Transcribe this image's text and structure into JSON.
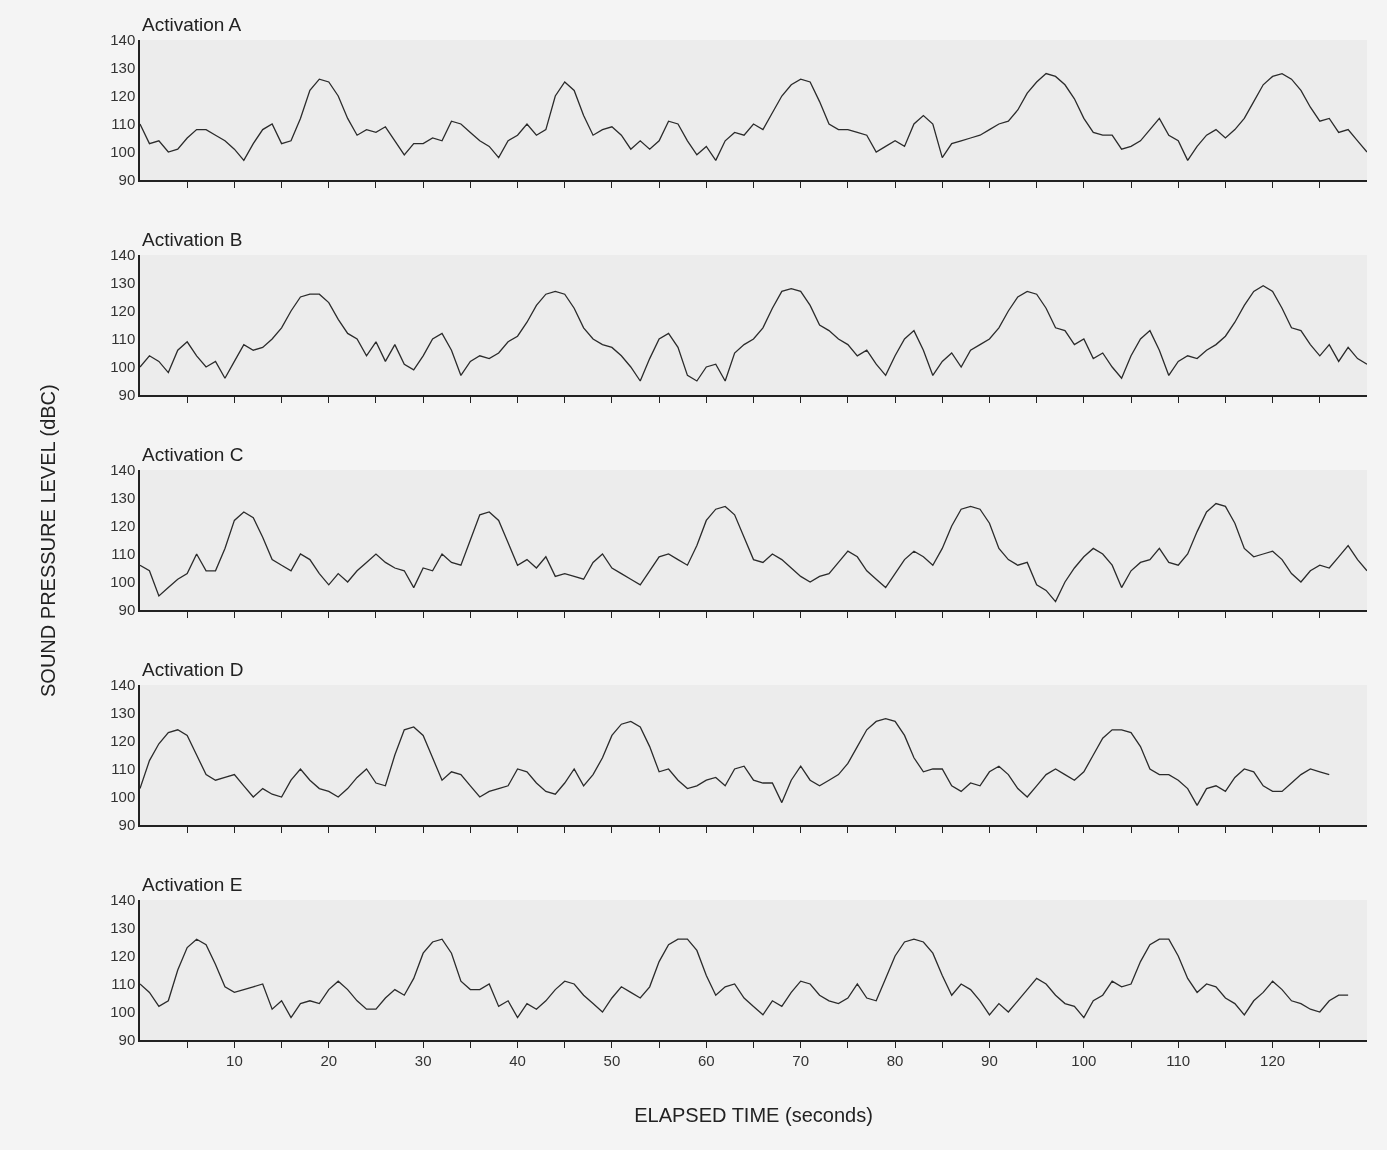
{
  "chart_data": [
    {
      "type": "line",
      "title": "Activation A",
      "tick_labels": "y",
      "xlim": [
        0,
        130
      ],
      "ylim": [
        90,
        140
      ],
      "yticks": [
        90,
        100,
        110,
        120,
        130,
        140
      ],
      "xticks": [
        {
          "value": 5,
          "label": null
        },
        10,
        {
          "value": 15,
          "label": null
        },
        20,
        {
          "value": 25,
          "label": null
        },
        30,
        {
          "value": 35,
          "label": null
        },
        40,
        {
          "value": 45,
          "label": null
        },
        50,
        {
          "value": 55,
          "label": null
        },
        60,
        {
          "value": 65,
          "label": null
        },
        70,
        {
          "value": 75,
          "label": null
        },
        80,
        {
          "value": 85,
          "label": null
        },
        90,
        {
          "value": 95,
          "label": null
        },
        100,
        {
          "value": 105,
          "label": null
        },
        110,
        {
          "value": 115,
          "label": null
        },
        120,
        {
          "value": 125,
          "label": null
        }
      ],
      "x": [
        0,
        1,
        2,
        3,
        4,
        5,
        6,
        7,
        8,
        9,
        10,
        11,
        12,
        13,
        14,
        15,
        16,
        17,
        18,
        19,
        20,
        21,
        22,
        23,
        24,
        25,
        26,
        27,
        28,
        29,
        30,
        31,
        32,
        33,
        34,
        35,
        36,
        37,
        38,
        39,
        40,
        41,
        42,
        43,
        44,
        45,
        46,
        47,
        48,
        49,
        50,
        51,
        52,
        53,
        54,
        55,
        56,
        57,
        58,
        59,
        60,
        61,
        62,
        63,
        64,
        65,
        66,
        67,
        68,
        69,
        70,
        71,
        72,
        73,
        74,
        75,
        76,
        77,
        78,
        79,
        80,
        81,
        82,
        83,
        84,
        85,
        86,
        87,
        88,
        89,
        90,
        91,
        92,
        93,
        94,
        95,
        96,
        97,
        98,
        99,
        100,
        101,
        102,
        103,
        104,
        105,
        106,
        107,
        108,
        109,
        110,
        111,
        112,
        113,
        114,
        115,
        116,
        117,
        118,
        119,
        120,
        121,
        122,
        123,
        124,
        125,
        126,
        127,
        128,
        129,
        130
      ],
      "series": [
        {
          "color": "#2b2b2b",
          "values": [
            110,
            103,
            104,
            100,
            101,
            105,
            108,
            108,
            106,
            104,
            101,
            97,
            103,
            108,
            110,
            103,
            104,
            112,
            122,
            126,
            125,
            120,
            112,
            106,
            108,
            107,
            109,
            104,
            99,
            103,
            103,
            105,
            104,
            111,
            110,
            107,
            104,
            102,
            98,
            104,
            106,
            110,
            106,
            108,
            120,
            125,
            122,
            113,
            106,
            108,
            109,
            106,
            101,
            104,
            101,
            104,
            111,
            110,
            104,
            99,
            102,
            97,
            104,
            107,
            106,
            110,
            108,
            114,
            120,
            124,
            126,
            125,
            118,
            110,
            108,
            108,
            107,
            106,
            100,
            102,
            104,
            102,
            110,
            113,
            110,
            98,
            103,
            104,
            105,
            106,
            108,
            110,
            111,
            115,
            121,
            125,
            128,
            127,
            124,
            119,
            112,
            107,
            106,
            106,
            101,
            102,
            104,
            108,
            112,
            106,
            104,
            97,
            102,
            106,
            108,
            105,
            108,
            112,
            118,
            124,
            127,
            128,
            126,
            122,
            116,
            111,
            112,
            107,
            108,
            104,
            100
          ]
        }
      ]
    },
    {
      "type": "line",
      "title": "Activation B",
      "tick_labels": "y",
      "xlim": [
        0,
        130
      ],
      "ylim": [
        90,
        140
      ],
      "yticks": [
        90,
        100,
        110,
        120,
        130,
        140
      ],
      "xticks": [
        {
          "value": 5,
          "label": null
        },
        10,
        {
          "value": 15,
          "label": null
        },
        20,
        {
          "value": 25,
          "label": null
        },
        30,
        {
          "value": 35,
          "label": null
        },
        40,
        {
          "value": 45,
          "label": null
        },
        50,
        {
          "value": 55,
          "label": null
        },
        60,
        {
          "value": 65,
          "label": null
        },
        70,
        {
          "value": 75,
          "label": null
        },
        80,
        {
          "value": 85,
          "label": null
        },
        90,
        {
          "value": 95,
          "label": null
        },
        100,
        {
          "value": 105,
          "label": null
        },
        110,
        {
          "value": 115,
          "label": null
        },
        120,
        {
          "value": 125,
          "label": null
        }
      ],
      "x": [
        0,
        1,
        2,
        3,
        4,
        5,
        6,
        7,
        8,
        9,
        10,
        11,
        12,
        13,
        14,
        15,
        16,
        17,
        18,
        19,
        20,
        21,
        22,
        23,
        24,
        25,
        26,
        27,
        28,
        29,
        30,
        31,
        32,
        33,
        34,
        35,
        36,
        37,
        38,
        39,
        40,
        41,
        42,
        43,
        44,
        45,
        46,
        47,
        48,
        49,
        50,
        51,
        52,
        53,
        54,
        55,
        56,
        57,
        58,
        59,
        60,
        61,
        62,
        63,
        64,
        65,
        66,
        67,
        68,
        69,
        70,
        71,
        72,
        73,
        74,
        75,
        76,
        77,
        78,
        79,
        80,
        81,
        82,
        83,
        84,
        85,
        86,
        87,
        88,
        89,
        90,
        91,
        92,
        93,
        94,
        95,
        96,
        97,
        98,
        99,
        100,
        101,
        102,
        103,
        104,
        105,
        106,
        107,
        108,
        109,
        110,
        111,
        112,
        113,
        114,
        115,
        116,
        117,
        118,
        119,
        120,
        121,
        122,
        123,
        124,
        125,
        126,
        127,
        128,
        129,
        130
      ],
      "series": [
        {
          "color": "#2b2b2b",
          "values": [
            100,
            104,
            102,
            98,
            106,
            109,
            104,
            100,
            102,
            96,
            102,
            108,
            106,
            107,
            110,
            114,
            120,
            125,
            126,
            126,
            123,
            117,
            112,
            110,
            104,
            109,
            102,
            108,
            101,
            99,
            104,
            110,
            112,
            106,
            97,
            102,
            104,
            103,
            105,
            109,
            111,
            116,
            122,
            126,
            127,
            126,
            121,
            114,
            110,
            108,
            107,
            104,
            100,
            95,
            103,
            110,
            112,
            107,
            97,
            95,
            100,
            101,
            95,
            105,
            108,
            110,
            114,
            121,
            127,
            128,
            127,
            122,
            115,
            113,
            110,
            108,
            104,
            106,
            101,
            97,
            104,
            110,
            113,
            106,
            97,
            102,
            105,
            100,
            106,
            108,
            110,
            114,
            120,
            125,
            127,
            126,
            121,
            114,
            113,
            108,
            110,
            103,
            105,
            100,
            96,
            104,
            110,
            113,
            106,
            97,
            102,
            104,
            103,
            106,
            108,
            111,
            116,
            122,
            127,
            129,
            127,
            121,
            114,
            113,
            108,
            104,
            108,
            102,
            107,
            103,
            101
          ]
        }
      ]
    },
    {
      "type": "line",
      "title": "Activation C",
      "ylabel": "SOUND PRESSURE LEVEL (dBC)",
      "tick_labels": "y",
      "xlim": [
        0,
        130
      ],
      "ylim": [
        90,
        140
      ],
      "yticks": [
        90,
        100,
        110,
        120,
        130,
        140
      ],
      "xticks": [
        {
          "value": 5,
          "label": null
        },
        10,
        {
          "value": 15,
          "label": null
        },
        20,
        {
          "value": 25,
          "label": null
        },
        30,
        {
          "value": 35,
          "label": null
        },
        40,
        {
          "value": 45,
          "label": null
        },
        50,
        {
          "value": 55,
          "label": null
        },
        60,
        {
          "value": 65,
          "label": null
        },
        70,
        {
          "value": 75,
          "label": null
        },
        80,
        {
          "value": 85,
          "label": null
        },
        90,
        {
          "value": 95,
          "label": null
        },
        100,
        {
          "value": 105,
          "label": null
        },
        110,
        {
          "value": 115,
          "label": null
        },
        120,
        {
          "value": 125,
          "label": null
        }
      ],
      "x": [
        0,
        1,
        2,
        3,
        4,
        5,
        6,
        7,
        8,
        9,
        10,
        11,
        12,
        13,
        14,
        15,
        16,
        17,
        18,
        19,
        20,
        21,
        22,
        23,
        24,
        25,
        26,
        27,
        28,
        29,
        30,
        31,
        32,
        33,
        34,
        35,
        36,
        37,
        38,
        39,
        40,
        41,
        42,
        43,
        44,
        45,
        46,
        47,
        48,
        49,
        50,
        51,
        52,
        53,
        54,
        55,
        56,
        57,
        58,
        59,
        60,
        61,
        62,
        63,
        64,
        65,
        66,
        67,
        68,
        69,
        70,
        71,
        72,
        73,
        74,
        75,
        76,
        77,
        78,
        79,
        80,
        81,
        82,
        83,
        84,
        85,
        86,
        87,
        88,
        89,
        90,
        91,
        92,
        93,
        94,
        95,
        96,
        97,
        98,
        99,
        100,
        101,
        102,
        103,
        104,
        105,
        106,
        107,
        108,
        109,
        110,
        111,
        112,
        113,
        114,
        115,
        116,
        117,
        118,
        119,
        120,
        121,
        122,
        123,
        124,
        125,
        126,
        127,
        128,
        129,
        130
      ],
      "series": [
        {
          "color": "#2b2b2b",
          "values": [
            106,
            104,
            95,
            98,
            101,
            103,
            110,
            104,
            104,
            112,
            122,
            125,
            123,
            116,
            108,
            106,
            104,
            110,
            108,
            103,
            99,
            103,
            100,
            104,
            107,
            110,
            107,
            105,
            104,
            98,
            105,
            104,
            110,
            107,
            106,
            115,
            124,
            125,
            122,
            114,
            106,
            108,
            105,
            109,
            102,
            103,
            102,
            101,
            107,
            110,
            105,
            103,
            101,
            99,
            104,
            109,
            110,
            108,
            106,
            113,
            122,
            126,
            127,
            124,
            116,
            108,
            107,
            110,
            108,
            105,
            102,
            100,
            102,
            103,
            107,
            111,
            109,
            104,
            101,
            98,
            103,
            108,
            111,
            109,
            106,
            112,
            120,
            126,
            127,
            126,
            121,
            112,
            108,
            106,
            107,
            99,
            97,
            93,
            100,
            105,
            109,
            112,
            110,
            106,
            98,
            104,
            107,
            108,
            112,
            107,
            106,
            110,
            118,
            125,
            128,
            127,
            121,
            112,
            109,
            110,
            111,
            108,
            103,
            100,
            104,
            106,
            105,
            109,
            113,
            108,
            104
          ]
        }
      ]
    },
    {
      "type": "line",
      "title": "Activation D",
      "tick_labels": "y",
      "xlim": [
        0,
        130
      ],
      "ylim": [
        90,
        140
      ],
      "yticks": [
        90,
        100,
        110,
        120,
        130,
        140
      ],
      "xticks": [
        {
          "value": 5,
          "label": null
        },
        10,
        {
          "value": 15,
          "label": null
        },
        20,
        {
          "value": 25,
          "label": null
        },
        30,
        {
          "value": 35,
          "label": null
        },
        40,
        {
          "value": 45,
          "label": null
        },
        50,
        {
          "value": 55,
          "label": null
        },
        60,
        {
          "value": 65,
          "label": null
        },
        70,
        {
          "value": 75,
          "label": null
        },
        80,
        {
          "value": 85,
          "label": null
        },
        90,
        {
          "value": 95,
          "label": null
        },
        100,
        {
          "value": 105,
          "label": null
        },
        110,
        {
          "value": 115,
          "label": null
        },
        120,
        {
          "value": 125,
          "label": null
        }
      ],
      "x": [
        0,
        1,
        2,
        3,
        4,
        5,
        6,
        7,
        8,
        9,
        10,
        11,
        12,
        13,
        14,
        15,
        16,
        17,
        18,
        19,
        20,
        21,
        22,
        23,
        24,
        25,
        26,
        27,
        28,
        29,
        30,
        31,
        32,
        33,
        34,
        35,
        36,
        37,
        38,
        39,
        40,
        41,
        42,
        43,
        44,
        45,
        46,
        47,
        48,
        49,
        50,
        51,
        52,
        53,
        54,
        55,
        56,
        57,
        58,
        59,
        60,
        61,
        62,
        63,
        64,
        65,
        66,
        67,
        68,
        69,
        70,
        71,
        72,
        73,
        74,
        75,
        76,
        77,
        78,
        79,
        80,
        81,
        82,
        83,
        84,
        85,
        86,
        87,
        88,
        89,
        90,
        91,
        92,
        93,
        94,
        95,
        96,
        97,
        98,
        99,
        100,
        101,
        102,
        103,
        104,
        105,
        106,
        107,
        108,
        109,
        110,
        111,
        112,
        113,
        114,
        115,
        116,
        117,
        118,
        119,
        120,
        121,
        122,
        123,
        124,
        125,
        126
      ],
      "series": [
        {
          "color": "#2b2b2b",
          "values": [
            103,
            113,
            119,
            123,
            124,
            122,
            115,
            108,
            106,
            107,
            108,
            104,
            100,
            103,
            101,
            100,
            106,
            110,
            106,
            103,
            102,
            100,
            103,
            107,
            110,
            105,
            104,
            115,
            124,
            125,
            122,
            114,
            106,
            109,
            108,
            104,
            100,
            102,
            103,
            104,
            110,
            109,
            105,
            102,
            101,
            105,
            110,
            104,
            108,
            114,
            122,
            126,
            127,
            125,
            118,
            109,
            110,
            106,
            103,
            104,
            106,
            107,
            104,
            110,
            111,
            106,
            105,
            105,
            98,
            106,
            111,
            106,
            104,
            106,
            108,
            112,
            118,
            124,
            127,
            128,
            127,
            122,
            114,
            109,
            110,
            110,
            104,
            102,
            105,
            104,
            109,
            111,
            108,
            103,
            100,
            104,
            108,
            110,
            108,
            106,
            109,
            115,
            121,
            124,
            124,
            123,
            118,
            110,
            108,
            108,
            106,
            103,
            97,
            103,
            104,
            102,
            107,
            110,
            109,
            104,
            102,
            102,
            105,
            108,
            110,
            109,
            108
          ]
        }
      ]
    },
    {
      "type": "line",
      "title": "Activation E",
      "xlabel": "ELAPSED TIME (seconds)",
      "xlim": [
        0,
        130
      ],
      "ylim": [
        90,
        140
      ],
      "yticks": [
        90,
        100,
        110,
        120,
        130,
        140
      ],
      "xticks": [
        {
          "value": 5,
          "label": null
        },
        10,
        {
          "value": 15,
          "label": null
        },
        20,
        {
          "value": 25,
          "label": null
        },
        30,
        {
          "value": 35,
          "label": null
        },
        40,
        {
          "value": 45,
          "label": null
        },
        50,
        {
          "value": 55,
          "label": null
        },
        60,
        {
          "value": 65,
          "label": null
        },
        70,
        {
          "value": 75,
          "label": null
        },
        80,
        {
          "value": 85,
          "label": null
        },
        90,
        {
          "value": 95,
          "label": null
        },
        100,
        {
          "value": 105,
          "label": null
        },
        110,
        {
          "value": 115,
          "label": null
        },
        120,
        {
          "value": 125,
          "label": null
        }
      ],
      "x": [
        0,
        1,
        2,
        3,
        4,
        5,
        6,
        7,
        8,
        9,
        10,
        11,
        12,
        13,
        14,
        15,
        16,
        17,
        18,
        19,
        20,
        21,
        22,
        23,
        24,
        25,
        26,
        27,
        28,
        29,
        30,
        31,
        32,
        33,
        34,
        35,
        36,
        37,
        38,
        39,
        40,
        41,
        42,
        43,
        44,
        45,
        46,
        47,
        48,
        49,
        50,
        51,
        52,
        53,
        54,
        55,
        56,
        57,
        58,
        59,
        60,
        61,
        62,
        63,
        64,
        65,
        66,
        67,
        68,
        69,
        70,
        71,
        72,
        73,
        74,
        75,
        76,
        77,
        78,
        79,
        80,
        81,
        82,
        83,
        84,
        85,
        86,
        87,
        88,
        89,
        90,
        91,
        92,
        93,
        94,
        95,
        96,
        97,
        98,
        99,
        100,
        101,
        102,
        103,
        104,
        105,
        106,
        107,
        108,
        109,
        110,
        111,
        112,
        113,
        114,
        115,
        116,
        117,
        118,
        119,
        120,
        121,
        122,
        123,
        124,
        125,
        126,
        127,
        128
      ],
      "series": [
        {
          "color": "#2b2b2b",
          "values": [
            110,
            107,
            102,
            104,
            115,
            123,
            126,
            124,
            117,
            109,
            107,
            108,
            109,
            110,
            101,
            104,
            98,
            103,
            104,
            103,
            108,
            111,
            108,
            104,
            101,
            101,
            105,
            108,
            106,
            112,
            121,
            125,
            126,
            121,
            111,
            108,
            108,
            110,
            102,
            104,
            98,
            103,
            101,
            104,
            108,
            111,
            110,
            106,
            103,
            100,
            105,
            109,
            107,
            105,
            109,
            118,
            124,
            126,
            126,
            122,
            113,
            106,
            109,
            110,
            105,
            102,
            99,
            104,
            102,
            107,
            111,
            110,
            106,
            104,
            103,
            105,
            110,
            105,
            104,
            112,
            120,
            125,
            126,
            125,
            121,
            113,
            106,
            110,
            108,
            104,
            99,
            103,
            100,
            104,
            108,
            112,
            110,
            106,
            103,
            102,
            98,
            104,
            106,
            111,
            109,
            110,
            118,
            124,
            126,
            126,
            120,
            112,
            107,
            110,
            109,
            105,
            103,
            99,
            104,
            107,
            111,
            108,
            104,
            103,
            101,
            100,
            104,
            106,
            106
          ]
        }
      ]
    }
  ]
}
